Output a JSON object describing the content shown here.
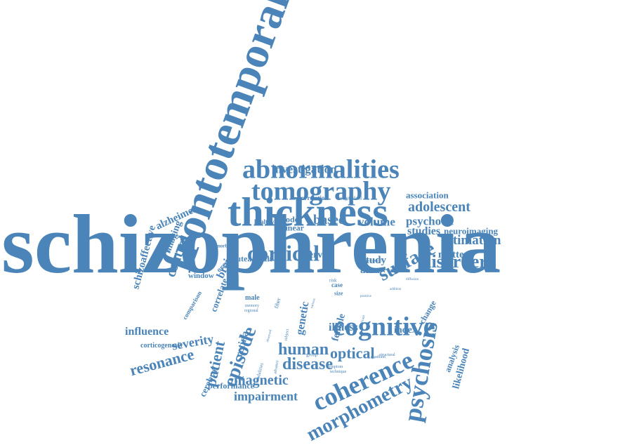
{
  "colors": {
    "word": "#4a84b8",
    "background": "#ffffff"
  },
  "words": [
    "schizophrenia",
    "frontotemporal",
    "thickness",
    "abnormalities",
    "tomography",
    "cortical",
    "cognitive",
    "coherence",
    "morphometry",
    "psychosis",
    "surface",
    "disorder",
    "episode",
    "magnetic",
    "impairment",
    "disease",
    "human",
    "optical",
    "resonance",
    "severity",
    "influence",
    "patient",
    "investigation",
    "adolescent",
    "psychotic",
    "estimation",
    "studies",
    "neuroimaging",
    "matter",
    "association",
    "based",
    "volume",
    "study",
    "area",
    "control",
    "schizoaffective",
    "alzheimer",
    "imaging",
    "genetic",
    "female",
    "illness",
    "index",
    "retina",
    "cerebral",
    "likelihood",
    "analysis",
    "change",
    "performance",
    "corticogenesis",
    "brain",
    "correlate",
    "comparison",
    "window",
    "organ",
    "lutea",
    "adult",
    "nerve",
    "model",
    "linear",
    "healthy",
    "correlation",
    "longitudinal",
    "premorbid",
    "male",
    "memory",
    "regional",
    "risk",
    "case",
    "size",
    "modalities",
    "advance",
    "symptom",
    "group",
    "quadrant",
    "structural",
    "technique",
    "temporal",
    "positive",
    "diffusion",
    "addition",
    "significant",
    "fiber",
    "subject",
    "observed",
    "various"
  ]
}
